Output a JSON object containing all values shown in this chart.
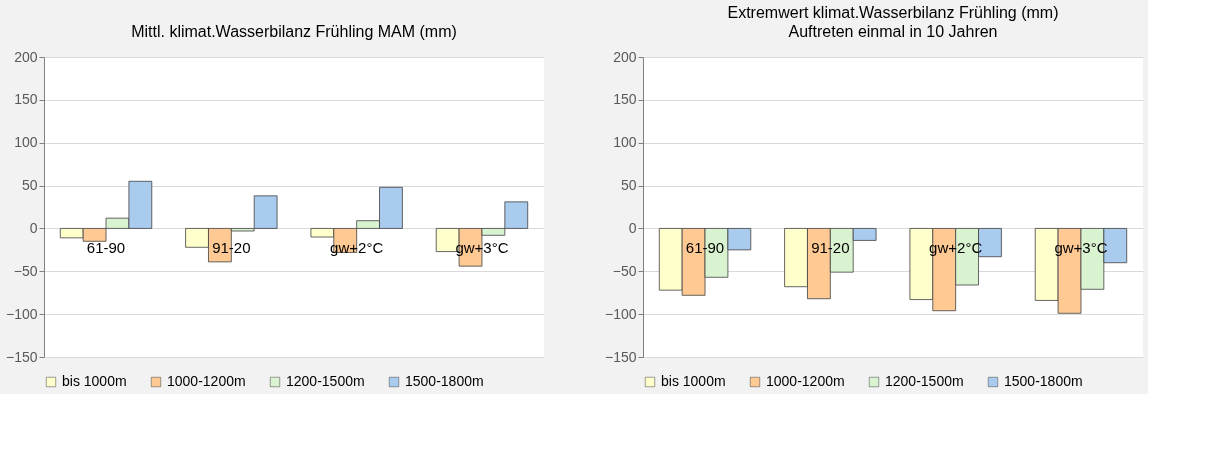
{
  "chart_data": [
    {
      "type": "bar",
      "title": "Mittl. klimat.Wasserbilanz Frühling MAM (mm)",
      "categories": [
        "61-90",
        "91-20",
        "gw+2°C",
        "gw+3°C"
      ],
      "series": [
        {
          "name": "bis 1000m",
          "color": "#ffffcc",
          "values": [
            -11,
            -22,
            -10,
            -27
          ]
        },
        {
          "name": "1000-1200m",
          "color": "#ffc993",
          "values": [
            -15,
            -39,
            -28,
            -44
          ]
        },
        {
          "name": "1200-1500m",
          "color": "#d9f2d0",
          "values": [
            12,
            -3,
            9,
            -8
          ]
        },
        {
          "name": "1500-1800m",
          "color": "#a9cbee",
          "values": [
            55,
            38,
            48,
            31
          ]
        }
      ],
      "ylim": [
        -150,
        200
      ],
      "yticks": [
        -150,
        -100,
        -50,
        0,
        50,
        100,
        150,
        200
      ],
      "grid": "y",
      "legend": "bottom"
    },
    {
      "type": "bar",
      "title": "Extremwert klimat.Wasserbilanz Frühling (mm)",
      "subtitle": "Auftreten einmal in 10 Jahren",
      "categories": [
        "61-90",
        "91-20",
        "gw+2°C",
        "gw+3°C"
      ],
      "series": [
        {
          "name": "bis 1000m",
          "color": "#ffffcc",
          "values": [
            -72,
            -68,
            -83,
            -84
          ]
        },
        {
          "name": "1000-1200m",
          "color": "#ffc993",
          "values": [
            -78,
            -82,
            -96,
            -99
          ]
        },
        {
          "name": "1200-1500m",
          "color": "#d9f2d0",
          "values": [
            -57,
            -51,
            -66,
            -71
          ]
        },
        {
          "name": "1500-1800m",
          "color": "#a9cbee",
          "values": [
            -25,
            -14,
            -33,
            -40
          ]
        }
      ],
      "ylim": [
        -150,
        200
      ],
      "yticks": [
        -150,
        -100,
        -50,
        0,
        50,
        100,
        150,
        200
      ],
      "grid": "y",
      "legend": "bottom"
    }
  ]
}
